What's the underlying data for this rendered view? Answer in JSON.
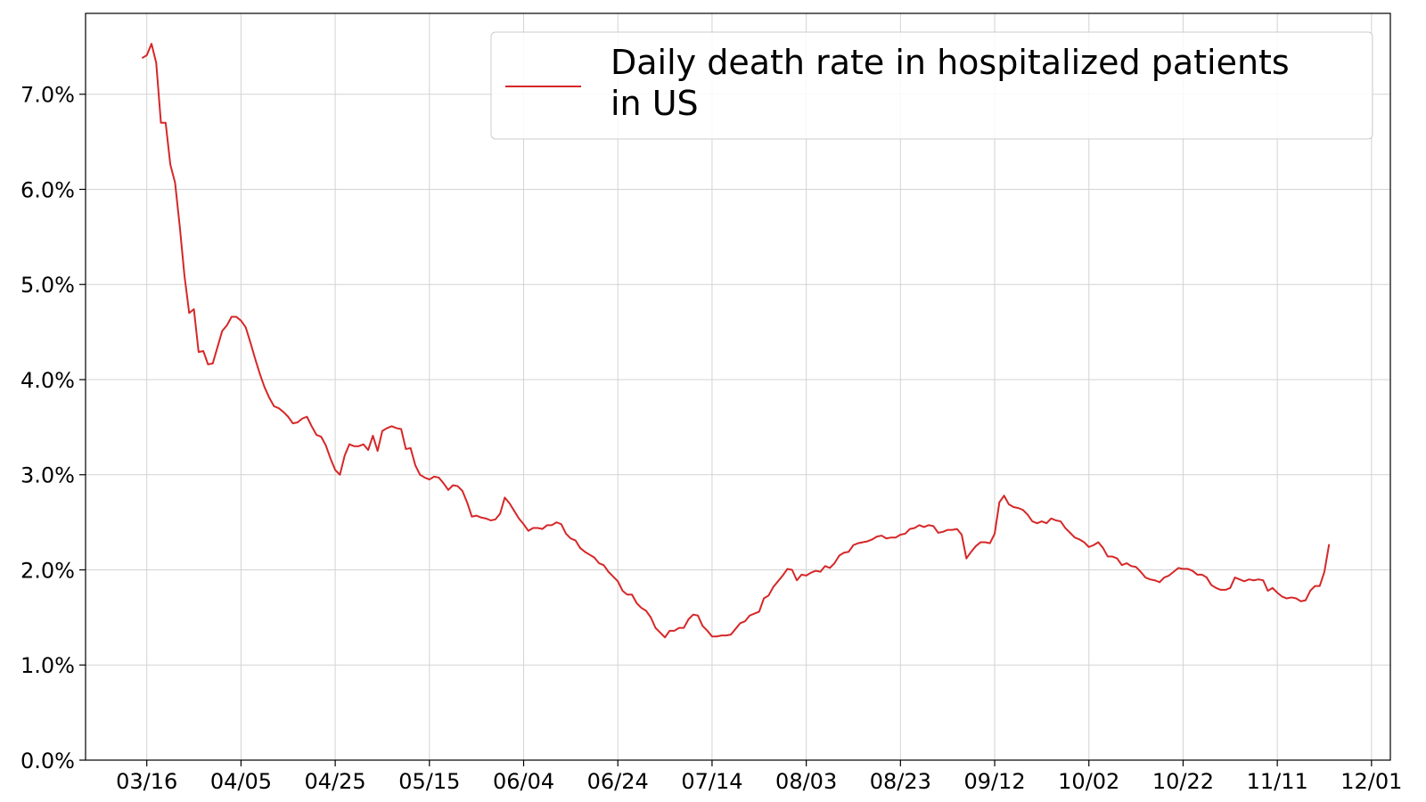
{
  "chart_data": {
    "type": "line",
    "title": "",
    "xlabel": "",
    "ylabel": "",
    "x_tick_labels": [
      "03/16",
      "04/05",
      "04/25",
      "05/15",
      "06/04",
      "06/24",
      "07/14",
      "08/03",
      "08/23",
      "09/12",
      "10/02",
      "10/22",
      "11/11",
      "12/01"
    ],
    "y_tick_labels": [
      "0.0%",
      "1.0%",
      "2.0%",
      "3.0%",
      "4.0%",
      "5.0%",
      "6.0%",
      "7.0%"
    ],
    "y_ticks": [
      0,
      1,
      2,
      3,
      4,
      5,
      6,
      7
    ],
    "ylim": [
      0,
      7.85
    ],
    "xlim": [
      "03/03",
      "12/05"
    ],
    "grid": true,
    "legend_position": "top-right",
    "series": [
      {
        "name": "Daily death rate in hospitalized patients in US",
        "color": "#d62728",
        "points": [
          [
            "03/15",
            7.38
          ],
          [
            "03/16",
            7.41
          ],
          [
            "03/17",
            7.53
          ],
          [
            "03/18",
            7.33
          ],
          [
            "03/19",
            6.7
          ],
          [
            "03/20",
            6.7
          ],
          [
            "03/21",
            6.26
          ],
          [
            "03/22",
            6.07
          ],
          [
            "03/23",
            5.61
          ],
          [
            "03/24",
            5.09
          ],
          [
            "03/25",
            4.7
          ],
          [
            "03/26",
            4.74
          ],
          [
            "03/27",
            4.29
          ],
          [
            "03/28",
            4.3
          ],
          [
            "03/29",
            4.16
          ],
          [
            "03/30",
            4.17
          ],
          [
            "03/31",
            4.34
          ],
          [
            "04/01",
            4.51
          ],
          [
            "04/02",
            4.57
          ],
          [
            "04/03",
            4.66
          ],
          [
            "04/04",
            4.66
          ],
          [
            "04/05",
            4.62
          ],
          [
            "04/06",
            4.55
          ],
          [
            "04/07",
            4.39
          ],
          [
            "04/08",
            4.22
          ],
          [
            "04/09",
            4.06
          ],
          [
            "04/10",
            3.92
          ],
          [
            "04/11",
            3.81
          ],
          [
            "04/12",
            3.72
          ],
          [
            "04/13",
            3.7
          ],
          [
            "04/14",
            3.66
          ],
          [
            "04/15",
            3.61
          ],
          [
            "04/16",
            3.54
          ],
          [
            "04/17",
            3.55
          ],
          [
            "04/18",
            3.59
          ],
          [
            "04/19",
            3.61
          ],
          [
            "04/20",
            3.51
          ],
          [
            "04/21",
            3.42
          ],
          [
            "04/22",
            3.4
          ],
          [
            "04/23",
            3.31
          ],
          [
            "04/24",
            3.17
          ],
          [
            "04/25",
            3.05
          ],
          [
            "04/26",
            3.0
          ],
          [
            "04/27",
            3.2
          ],
          [
            "04/28",
            3.32
          ],
          [
            "04/29",
            3.3
          ],
          [
            "04/30",
            3.3
          ],
          [
            "05/01",
            3.32
          ],
          [
            "05/02",
            3.26
          ],
          [
            "05/03",
            3.41
          ],
          [
            "05/04",
            3.25
          ],
          [
            "05/05",
            3.46
          ],
          [
            "05/06",
            3.49
          ],
          [
            "05/07",
            3.51
          ],
          [
            "05/08",
            3.49
          ],
          [
            "05/09",
            3.48
          ],
          [
            "05/10",
            3.27
          ],
          [
            "05/11",
            3.28
          ],
          [
            "05/12",
            3.1
          ],
          [
            "05/13",
            3.0
          ],
          [
            "05/14",
            2.97
          ],
          [
            "05/15",
            2.95
          ],
          [
            "05/16",
            2.98
          ],
          [
            "05/17",
            2.97
          ],
          [
            "05/18",
            2.91
          ],
          [
            "05/19",
            2.84
          ],
          [
            "05/20",
            2.89
          ],
          [
            "05/21",
            2.88
          ],
          [
            "05/22",
            2.83
          ],
          [
            "05/23",
            2.71
          ],
          [
            "05/24",
            2.56
          ],
          [
            "05/25",
            2.57
          ],
          [
            "05/26",
            2.55
          ],
          [
            "05/27",
            2.54
          ],
          [
            "05/28",
            2.52
          ],
          [
            "05/29",
            2.53
          ],
          [
            "05/30",
            2.59
          ],
          [
            "05/31",
            2.76
          ],
          [
            "06/01",
            2.7
          ],
          [
            "06/02",
            2.62
          ],
          [
            "06/03",
            2.54
          ],
          [
            "06/04",
            2.48
          ],
          [
            "06/05",
            2.41
          ],
          [
            "06/06",
            2.44
          ],
          [
            "06/07",
            2.44
          ],
          [
            "06/08",
            2.43
          ],
          [
            "06/09",
            2.47
          ],
          [
            "06/10",
            2.47
          ],
          [
            "06/11",
            2.5
          ],
          [
            "06/12",
            2.48
          ],
          [
            "06/13",
            2.38
          ],
          [
            "06/14",
            2.33
          ],
          [
            "06/15",
            2.31
          ],
          [
            "06/16",
            2.23
          ],
          [
            "06/17",
            2.19
          ],
          [
            "06/18",
            2.16
          ],
          [
            "06/19",
            2.13
          ],
          [
            "06/20",
            2.07
          ],
          [
            "06/21",
            2.05
          ],
          [
            "06/22",
            1.98
          ],
          [
            "06/23",
            1.93
          ],
          [
            "06/24",
            1.88
          ],
          [
            "06/25",
            1.78
          ],
          [
            "06/26",
            1.74
          ],
          [
            "06/27",
            1.74
          ],
          [
            "06/28",
            1.65
          ],
          [
            "06/29",
            1.6
          ],
          [
            "06/30",
            1.57
          ],
          [
            "07/01",
            1.5
          ],
          [
            "07/02",
            1.39
          ],
          [
            "07/03",
            1.34
          ],
          [
            "07/04",
            1.29
          ],
          [
            "07/05",
            1.36
          ],
          [
            "07/06",
            1.36
          ],
          [
            "07/07",
            1.39
          ],
          [
            "07/08",
            1.39
          ],
          [
            "07/09",
            1.48
          ],
          [
            "07/10",
            1.53
          ],
          [
            "07/11",
            1.52
          ],
          [
            "07/12",
            1.41
          ],
          [
            "07/13",
            1.36
          ],
          [
            "07/14",
            1.3
          ],
          [
            "07/15",
            1.3
          ],
          [
            "07/16",
            1.31
          ],
          [
            "07/17",
            1.31
          ],
          [
            "07/18",
            1.32
          ],
          [
            "07/19",
            1.38
          ],
          [
            "07/20",
            1.44
          ],
          [
            "07/21",
            1.46
          ],
          [
            "07/22",
            1.52
          ],
          [
            "07/23",
            1.54
          ],
          [
            "07/24",
            1.56
          ],
          [
            "07/25",
            1.7
          ],
          [
            "07/26",
            1.73
          ],
          [
            "07/27",
            1.82
          ],
          [
            "07/28",
            1.88
          ],
          [
            "07/29",
            1.94
          ],
          [
            "07/30",
            2.01
          ],
          [
            "07/31",
            2.0
          ],
          [
            "08/01",
            1.89
          ],
          [
            "08/02",
            1.95
          ],
          [
            "08/03",
            1.94
          ],
          [
            "08/04",
            1.97
          ],
          [
            "08/05",
            1.99
          ],
          [
            "08/06",
            1.98
          ],
          [
            "08/07",
            2.04
          ],
          [
            "08/08",
            2.02
          ],
          [
            "08/09",
            2.07
          ],
          [
            "08/10",
            2.15
          ],
          [
            "08/11",
            2.18
          ],
          [
            "08/12",
            2.19
          ],
          [
            "08/13",
            2.26
          ],
          [
            "08/14",
            2.28
          ],
          [
            "08/15",
            2.29
          ],
          [
            "08/16",
            2.3
          ],
          [
            "08/17",
            2.32
          ],
          [
            "08/18",
            2.35
          ],
          [
            "08/19",
            2.36
          ],
          [
            "08/20",
            2.33
          ],
          [
            "08/21",
            2.34
          ],
          [
            "08/22",
            2.34
          ],
          [
            "08/23",
            2.37
          ],
          [
            "08/24",
            2.38
          ],
          [
            "08/25",
            2.43
          ],
          [
            "08/26",
            2.44
          ],
          [
            "08/27",
            2.47
          ],
          [
            "08/28",
            2.45
          ],
          [
            "08/29",
            2.47
          ],
          [
            "08/30",
            2.46
          ],
          [
            "08/31",
            2.39
          ],
          [
            "09/01",
            2.4
          ],
          [
            "09/02",
            2.42
          ],
          [
            "09/03",
            2.42
          ],
          [
            "09/04",
            2.43
          ],
          [
            "09/05",
            2.37
          ],
          [
            "09/06",
            2.12
          ],
          [
            "09/07",
            2.19
          ],
          [
            "09/08",
            2.25
          ],
          [
            "09/09",
            2.29
          ],
          [
            "09/10",
            2.29
          ],
          [
            "09/11",
            2.28
          ],
          [
            "09/12",
            2.38
          ],
          [
            "09/13",
            2.71
          ],
          [
            "09/14",
            2.78
          ],
          [
            "09/15",
            2.69
          ],
          [
            "09/16",
            2.66
          ],
          [
            "09/17",
            2.65
          ],
          [
            "09/18",
            2.63
          ],
          [
            "09/19",
            2.58
          ],
          [
            "09/20",
            2.51
          ],
          [
            "09/21",
            2.49
          ],
          [
            "09/22",
            2.51
          ],
          [
            "09/23",
            2.49
          ],
          [
            "09/24",
            2.54
          ],
          [
            "09/25",
            2.52
          ],
          [
            "09/26",
            2.51
          ],
          [
            "09/27",
            2.44
          ],
          [
            "09/28",
            2.39
          ],
          [
            "09/29",
            2.34
          ],
          [
            "09/30",
            2.32
          ],
          [
            "10/01",
            2.29
          ],
          [
            "10/02",
            2.24
          ],
          [
            "10/03",
            2.26
          ],
          [
            "10/04",
            2.29
          ],
          [
            "10/05",
            2.23
          ],
          [
            "10/06",
            2.14
          ],
          [
            "10/07",
            2.14
          ],
          [
            "10/08",
            2.12
          ],
          [
            "10/09",
            2.05
          ],
          [
            "10/10",
            2.07
          ],
          [
            "10/11",
            2.04
          ],
          [
            "10/12",
            2.03
          ],
          [
            "10/13",
            1.98
          ],
          [
            "10/14",
            1.92
          ],
          [
            "10/15",
            1.9
          ],
          [
            "10/16",
            1.89
          ],
          [
            "10/17",
            1.87
          ],
          [
            "10/18",
            1.92
          ],
          [
            "10/19",
            1.94
          ],
          [
            "10/20",
            1.98
          ],
          [
            "10/21",
            2.02
          ],
          [
            "10/22",
            2.01
          ],
          [
            "10/23",
            2.01
          ],
          [
            "10/24",
            1.99
          ],
          [
            "10/25",
            1.95
          ],
          [
            "10/26",
            1.95
          ],
          [
            "10/27",
            1.92
          ],
          [
            "10/28",
            1.84
          ],
          [
            "10/29",
            1.81
          ],
          [
            "10/30",
            1.79
          ],
          [
            "10/31",
            1.79
          ],
          [
            "11/01",
            1.81
          ],
          [
            "11/02",
            1.92
          ],
          [
            "11/03",
            1.9
          ],
          [
            "11/04",
            1.88
          ],
          [
            "11/05",
            1.9
          ],
          [
            "11/06",
            1.89
          ],
          [
            "11/07",
            1.9
          ],
          [
            "11/08",
            1.89
          ],
          [
            "11/09",
            1.78
          ],
          [
            "11/10",
            1.81
          ],
          [
            "11/11",
            1.76
          ],
          [
            "11/12",
            1.72
          ],
          [
            "11/13",
            1.7
          ],
          [
            "11/14",
            1.71
          ],
          [
            "11/15",
            1.7
          ],
          [
            "11/16",
            1.67
          ],
          [
            "11/17",
            1.68
          ],
          [
            "11/18",
            1.78
          ],
          [
            "11/19",
            1.83
          ],
          [
            "11/20",
            1.83
          ],
          [
            "11/21",
            1.98
          ],
          [
            "11/22",
            2.27
          ]
        ]
      }
    ]
  }
}
